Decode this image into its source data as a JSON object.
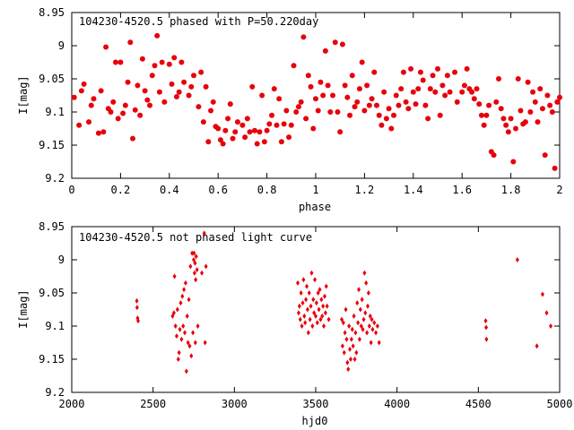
{
  "chart_data": [
    {
      "type": "scatter",
      "title": "104230-4520.5 phased with P=50.220day",
      "xlabel": "phase",
      "ylabel": "I[mag]",
      "xlim": [
        0,
        2
      ],
      "ylim": [
        8.95,
        9.2
      ],
      "y_inverted": true,
      "xticks": [
        "0",
        "0.2",
        "0.4",
        "0.6",
        "0.8",
        "1",
        "1.2",
        "1.4",
        "1.6",
        "1.8",
        "2"
      ],
      "yticks": [
        "8.95",
        "9",
        "9.05",
        "9.1",
        "9.15",
        "9.2"
      ],
      "marker": "filled-circle",
      "color": "#e8000b",
      "grid": false,
      "points": [
        [
          0.01,
          9.078
        ],
        [
          0.03,
          9.12
        ],
        [
          0.04,
          9.068
        ],
        [
          0.05,
          9.058
        ],
        [
          0.07,
          9.115
        ],
        [
          0.08,
          9.09
        ],
        [
          0.09,
          9.08
        ],
        [
          0.11,
          9.132
        ],
        [
          0.12,
          9.068
        ],
        [
          0.13,
          9.13
        ],
        [
          0.14,
          9.002
        ],
        [
          0.15,
          9.095
        ],
        [
          0.16,
          9.1
        ],
        [
          0.17,
          9.085
        ],
        [
          0.18,
          9.025
        ],
        [
          0.19,
          9.11
        ],
        [
          0.2,
          9.025
        ],
        [
          0.21,
          9.102
        ],
        [
          0.22,
          9.09
        ],
        [
          0.23,
          9.055
        ],
        [
          0.24,
          8.995
        ],
        [
          0.25,
          9.14
        ],
        [
          0.26,
          9.097
        ],
        [
          0.27,
          9.06
        ],
        [
          0.28,
          9.105
        ],
        [
          0.29,
          9.02
        ],
        [
          0.3,
          9.068
        ],
        [
          0.31,
          9.082
        ],
        [
          0.32,
          9.09
        ],
        [
          0.33,
          9.045
        ],
        [
          0.34,
          9.03
        ],
        [
          0.35,
          8.985
        ],
        [
          0.36,
          9.07
        ],
        [
          0.37,
          9.025
        ],
        [
          0.38,
          9.085
        ],
        [
          0.4,
          9.028
        ],
        [
          0.41,
          9.058
        ],
        [
          0.42,
          9.018
        ],
        [
          0.43,
          9.077
        ],
        [
          0.44,
          9.07
        ],
        [
          0.45,
          9.025
        ],
        [
          0.46,
          9.055
        ],
        [
          0.48,
          9.075
        ],
        [
          0.49,
          9.062
        ],
        [
          0.5,
          9.045
        ],
        [
          0.52,
          9.092
        ],
        [
          0.53,
          9.04
        ],
        [
          0.54,
          9.115
        ],
        [
          0.55,
          9.062
        ],
        [
          0.56,
          9.145
        ],
        [
          0.57,
          9.098
        ],
        [
          0.58,
          9.085
        ],
        [
          0.59,
          9.122
        ],
        [
          0.6,
          9.125
        ],
        [
          0.61,
          9.142
        ],
        [
          0.62,
          9.148
        ],
        [
          0.63,
          9.128
        ],
        [
          0.64,
          9.11
        ],
        [
          0.65,
          9.088
        ],
        [
          0.66,
          9.14
        ],
        [
          0.67,
          9.13
        ],
        [
          0.68,
          9.115
        ],
        [
          0.7,
          9.12
        ],
        [
          0.71,
          9.138
        ],
        [
          0.72,
          9.11
        ],
        [
          0.73,
          9.13
        ],
        [
          0.74,
          9.062
        ],
        [
          0.75,
          9.128
        ],
        [
          0.76,
          9.148
        ],
        [
          0.77,
          9.13
        ],
        [
          0.78,
          9.075
        ],
        [
          0.79,
          9.145
        ],
        [
          0.8,
          9.128
        ],
        [
          0.81,
          9.118
        ],
        [
          0.82,
          9.105
        ],
        [
          0.83,
          9.065
        ],
        [
          0.84,
          9.12
        ],
        [
          0.85,
          9.08
        ],
        [
          0.86,
          9.145
        ],
        [
          0.87,
          9.118
        ],
        [
          0.88,
          9.098
        ],
        [
          0.89,
          9.138
        ],
        [
          0.9,
          9.12
        ],
        [
          0.91,
          9.03
        ],
        [
          0.92,
          9.1
        ],
        [
          0.93,
          9.092
        ],
        [
          0.94,
          9.085
        ],
        [
          0.95,
          8.987
        ],
        [
          0.96,
          9.11
        ],
        [
          0.97,
          9.045
        ],
        [
          0.98,
          9.062
        ],
        [
          0.99,
          9.125
        ],
        [
          1.0,
          9.08
        ],
        [
          1.01,
          9.098
        ],
        [
          1.02,
          9.055
        ],
        [
          1.03,
          9.075
        ],
        [
          1.04,
          9.008
        ],
        [
          1.05,
          9.06
        ],
        [
          1.06,
          9.1
        ],
        [
          1.07,
          9.075
        ],
        [
          1.08,
          8.995
        ],
        [
          1.09,
          9.1
        ],
        [
          1.1,
          9.13
        ],
        [
          1.11,
          8.998
        ],
        [
          1.12,
          9.06
        ],
        [
          1.13,
          9.078
        ],
        [
          1.14,
          9.105
        ],
        [
          1.15,
          9.045
        ],
        [
          1.16,
          9.092
        ],
        [
          1.17,
          9.085
        ],
        [
          1.18,
          9.065
        ],
        [
          1.19,
          9.025
        ],
        [
          1.2,
          9.098
        ],
        [
          1.21,
          9.06
        ],
        [
          1.22,
          9.09
        ],
        [
          1.23,
          9.08
        ],
        [
          1.24,
          9.04
        ],
        [
          1.25,
          9.09
        ],
        [
          1.26,
          9.105
        ],
        [
          1.27,
          9.12
        ],
        [
          1.28,
          9.07
        ],
        [
          1.29,
          9.11
        ],
        [
          1.3,
          9.095
        ],
        [
          1.31,
          9.125
        ],
        [
          1.32,
          9.105
        ],
        [
          1.33,
          9.075
        ],
        [
          1.34,
          9.09
        ],
        [
          1.35,
          9.065
        ],
        [
          1.36,
          9.04
        ],
        [
          1.37,
          9.085
        ],
        [
          1.38,
          9.095
        ],
        [
          1.39,
          9.035
        ],
        [
          1.4,
          9.07
        ],
        [
          1.41,
          9.088
        ],
        [
          1.42,
          9.065
        ],
        [
          1.43,
          9.04
        ],
        [
          1.44,
          9.052
        ],
        [
          1.45,
          9.09
        ],
        [
          1.46,
          9.11
        ],
        [
          1.47,
          9.065
        ],
        [
          1.48,
          9.045
        ],
        [
          1.49,
          9.07
        ],
        [
          1.5,
          9.035
        ],
        [
          1.51,
          9.105
        ],
        [
          1.52,
          9.06
        ],
        [
          1.53,
          9.075
        ],
        [
          1.54,
          9.045
        ],
        [
          1.55,
          9.07
        ],
        [
          1.57,
          9.04
        ],
        [
          1.58,
          9.085
        ],
        [
          1.6,
          9.07
        ],
        [
          1.61,
          9.06
        ],
        [
          1.62,
          9.035
        ],
        [
          1.63,
          9.065
        ],
        [
          1.64,
          9.07
        ],
        [
          1.65,
          9.08
        ],
        [
          1.66,
          9.065
        ],
        [
          1.67,
          9.088
        ],
        [
          1.68,
          9.105
        ],
        [
          1.69,
          9.12
        ],
        [
          1.7,
          9.105
        ],
        [
          1.71,
          9.09
        ],
        [
          1.72,
          9.16
        ],
        [
          1.73,
          9.165
        ],
        [
          1.74,
          9.085
        ],
        [
          1.75,
          9.05
        ],
        [
          1.76,
          9.095
        ],
        [
          1.77,
          9.11
        ],
        [
          1.78,
          9.12
        ],
        [
          1.79,
          9.13
        ],
        [
          1.8,
          9.11
        ],
        [
          1.81,
          9.175
        ],
        [
          1.82,
          9.125
        ],
        [
          1.83,
          9.05
        ],
        [
          1.84,
          9.098
        ],
        [
          1.85,
          9.118
        ],
        [
          1.86,
          9.115
        ],
        [
          1.87,
          9.055
        ],
        [
          1.88,
          9.1
        ],
        [
          1.89,
          9.07
        ],
        [
          1.9,
          9.085
        ],
        [
          1.91,
          9.115
        ],
        [
          1.92,
          9.065
        ],
        [
          1.93,
          9.095
        ],
        [
          1.94,
          9.165
        ],
        [
          1.95,
          9.075
        ],
        [
          1.96,
          9.09
        ],
        [
          1.97,
          9.1
        ],
        [
          1.98,
          9.185
        ],
        [
          1.99,
          9.085
        ],
        [
          2.0,
          9.078
        ]
      ]
    },
    {
      "type": "scatter",
      "title": "104230-4520.5 not phased light curve",
      "xlabel": "hjd0",
      "ylabel": "I[mag]",
      "xlim": [
        2000,
        5000
      ],
      "ylim": [
        8.95,
        9.2
      ],
      "y_inverted": true,
      "xticks": [
        "2000",
        "2500",
        "3000",
        "3500",
        "4000",
        "4500",
        "5000"
      ],
      "yticks": [
        "8.95",
        "9",
        "9.05",
        "9.1",
        "9.15",
        "9.2"
      ],
      "marker": "diamond",
      "color": "#e8000b",
      "grid": false,
      "points": [
        [
          2400,
          9.062
        ],
        [
          2402,
          9.072
        ],
        [
          2405,
          9.088
        ],
        [
          2408,
          9.092
        ],
        [
          2620,
          9.085
        ],
        [
          2628,
          9.08
        ],
        [
          2632,
          9.025
        ],
        [
          2638,
          9.1
        ],
        [
          2645,
          9.115
        ],
        [
          2650,
          9.075
        ],
        [
          2655,
          9.15
        ],
        [
          2660,
          9.14
        ],
        [
          2665,
          9.105
        ],
        [
          2670,
          9.065
        ],
        [
          2675,
          9.12
        ],
        [
          2680,
          9.055
        ],
        [
          2685,
          9.1
        ],
        [
          2690,
          9.045
        ],
        [
          2695,
          9.11
        ],
        [
          2700,
          9.035
        ],
        [
          2705,
          9.168
        ],
        [
          2710,
          9.085
        ],
        [
          2715,
          9.125
        ],
        [
          2720,
          9.06
        ],
        [
          2725,
          9.13
        ],
        [
          2730,
          9.01
        ],
        [
          2735,
          9.145
        ],
        [
          2740,
          8.99
        ],
        [
          2745,
          9.11
        ],
        [
          2750,
          9.0
        ],
        [
          2752,
          8.99
        ],
        [
          2755,
          9.02
        ],
        [
          2758,
          9.005
        ],
        [
          2760,
          9.125
        ],
        [
          2762,
          9.03
        ],
        [
          2765,
          8.995
        ],
        [
          2770,
          9.015
        ],
        [
          2775,
          9.1
        ],
        [
          2800,
          9.02
        ],
        [
          2815,
          8.96
        ],
        [
          2820,
          9.125
        ],
        [
          2825,
          9.01
        ],
        [
          3390,
          9.035
        ],
        [
          3395,
          9.08
        ],
        [
          3400,
          9.07
        ],
        [
          3405,
          9.09
        ],
        [
          3410,
          9.05
        ],
        [
          3415,
          9.1
        ],
        [
          3420,
          9.065
        ],
        [
          3425,
          9.03
        ],
        [
          3430,
          9.085
        ],
        [
          3435,
          9.095
        ],
        [
          3440,
          9.06
        ],
        [
          3445,
          9.04
        ],
        [
          3450,
          9.075
        ],
        [
          3455,
          9.11
        ],
        [
          3460,
          9.05
        ],
        [
          3465,
          9.09
        ],
        [
          3470,
          9.07
        ],
        [
          3475,
          9.02
        ],
        [
          3480,
          9.1
        ],
        [
          3485,
          9.06
        ],
        [
          3490,
          9.08
        ],
        [
          3495,
          9.03
        ],
        [
          3500,
          9.085
        ],
        [
          3505,
          9.065
        ],
        [
          3510,
          9.095
        ],
        [
          3515,
          9.05
        ],
        [
          3520,
          9.075
        ],
        [
          3525,
          9.045
        ],
        [
          3530,
          9.09
        ],
        [
          3535,
          9.06
        ],
        [
          3540,
          9.085
        ],
        [
          3545,
          9.07
        ],
        [
          3550,
          9.1
        ],
        [
          3555,
          9.055
        ],
        [
          3560,
          9.08
        ],
        [
          3565,
          9.04
        ],
        [
          3570,
          9.07
        ],
        [
          3580,
          9.09
        ],
        [
          3660,
          9.09
        ],
        [
          3665,
          9.13
        ],
        [
          3670,
          9.095
        ],
        [
          3675,
          9.14
        ],
        [
          3680,
          9.11
        ],
        [
          3685,
          9.075
        ],
        [
          3690,
          9.12
        ],
        [
          3695,
          9.155
        ],
        [
          3700,
          9.165
        ],
        [
          3705,
          9.1
        ],
        [
          3710,
          9.135
        ],
        [
          3715,
          9.15
        ],
        [
          3720,
          9.12
        ],
        [
          3725,
          9.105
        ],
        [
          3730,
          9.13
        ],
        [
          3735,
          9.085
        ],
        [
          3740,
          9.15
        ],
        [
          3745,
          9.11
        ],
        [
          3750,
          9.14
        ],
        [
          3755,
          9.065
        ],
        [
          3760,
          9.095
        ],
        [
          3765,
          9.045
        ],
        [
          3770,
          9.12
        ],
        [
          3775,
          9.075
        ],
        [
          3780,
          9.1
        ],
        [
          3785,
          9.06
        ],
        [
          3790,
          9.105
        ],
        [
          3795,
          9.09
        ],
        [
          3800,
          9.02
        ],
        [
          3805,
          9.08
        ],
        [
          3810,
          9.035
        ],
        [
          3815,
          9.11
        ],
        [
          3820,
          9.07
        ],
        [
          3825,
          9.05
        ],
        [
          3830,
          9.1
        ],
        [
          3835,
          9.085
        ],
        [
          3840,
          9.125
        ],
        [
          3845,
          9.09
        ],
        [
          3850,
          9.105
        ],
        [
          3860,
          9.095
        ],
        [
          3870,
          9.11
        ],
        [
          3880,
          9.1
        ],
        [
          3890,
          9.125
        ],
        [
          4545,
          9.092
        ],
        [
          4548,
          9.102
        ],
        [
          4550,
          9.12
        ],
        [
          4740,
          9.0
        ],
        [
          4860,
          9.13
        ],
        [
          4895,
          9.052
        ],
        [
          4920,
          9.08
        ],
        [
          4945,
          9.1
        ]
      ]
    }
  ],
  "colors": {
    "points": "#e8000b",
    "axis": "#000000",
    "background": "#ffffff"
  }
}
